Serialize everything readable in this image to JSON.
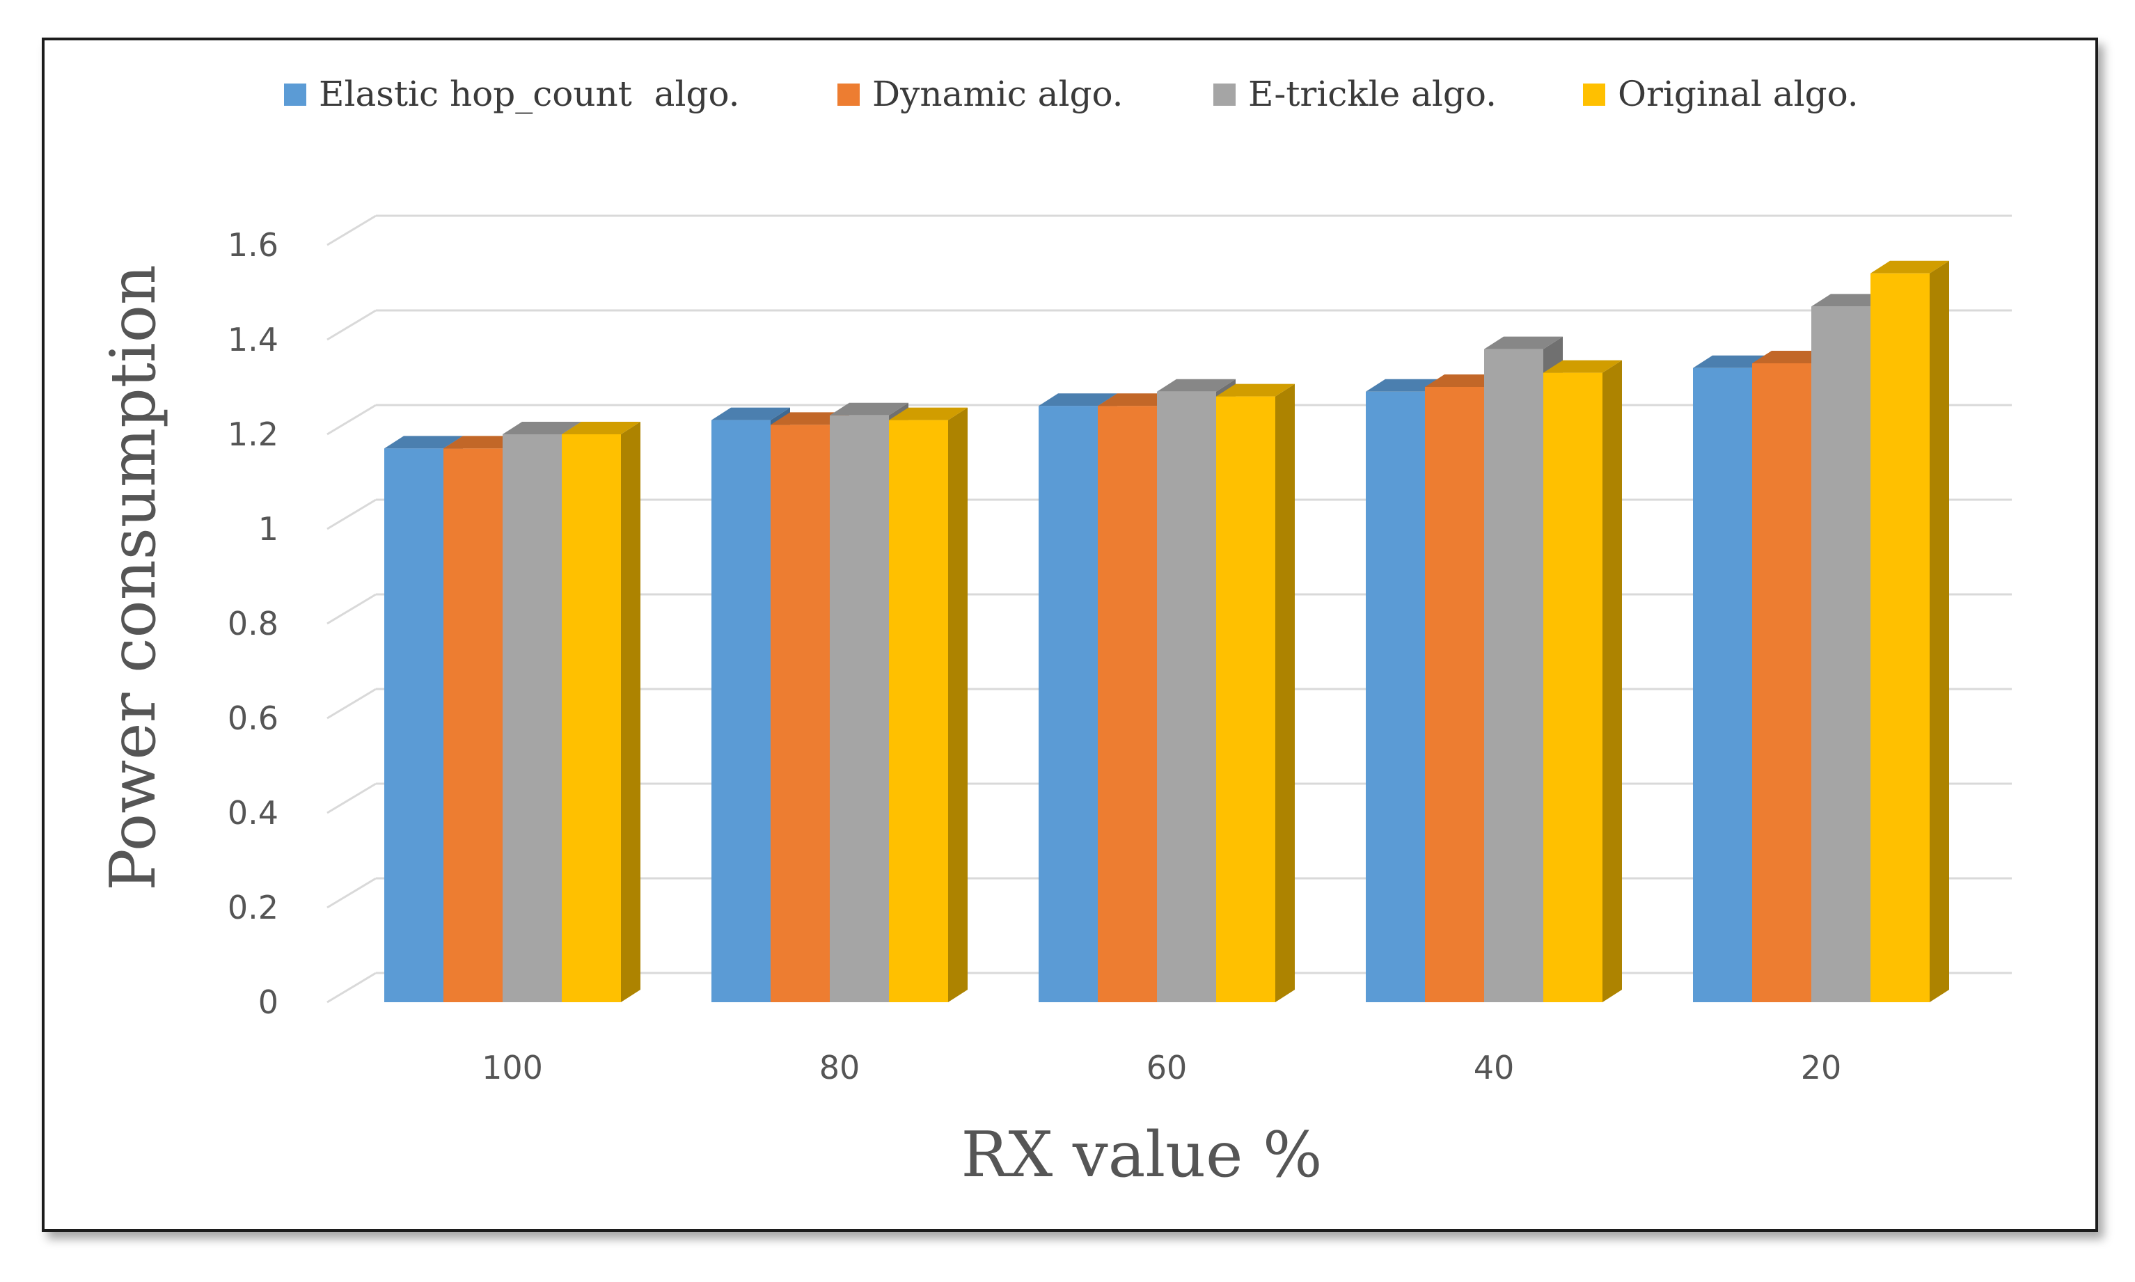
{
  "chart_data": {
    "type": "bar",
    "style": "3d-clustered-column",
    "categories": [
      "100",
      "80",
      "60",
      "40",
      "20"
    ],
    "series": [
      {
        "name": "Elastic hop_count  algo.",
        "color": "#5b9bd5",
        "values": [
          1.17,
          1.23,
          1.26,
          1.29,
          1.34
        ]
      },
      {
        "name": "Dynamic algo.",
        "color": "#ed7d31",
        "values": [
          1.17,
          1.22,
          1.26,
          1.3,
          1.35
        ]
      },
      {
        "name": "E-trickle algo.",
        "color": "#a5a5a5",
        "values": [
          1.2,
          1.24,
          1.29,
          1.38,
          1.47
        ]
      },
      {
        "name": "Original algo.",
        "color": "#ffc000",
        "values": [
          1.2,
          1.23,
          1.28,
          1.33,
          1.54
        ]
      }
    ],
    "title": "",
    "xlabel": "RX value %",
    "ylabel": "Power consumption",
    "ylim": [
      0,
      1.6
    ],
    "yticks": [
      "0",
      "0.2",
      "0.4",
      "0.6",
      "0.8",
      "1",
      "1.2",
      "1.4",
      "1.6"
    ],
    "grid": true,
    "legend_position": "top"
  }
}
